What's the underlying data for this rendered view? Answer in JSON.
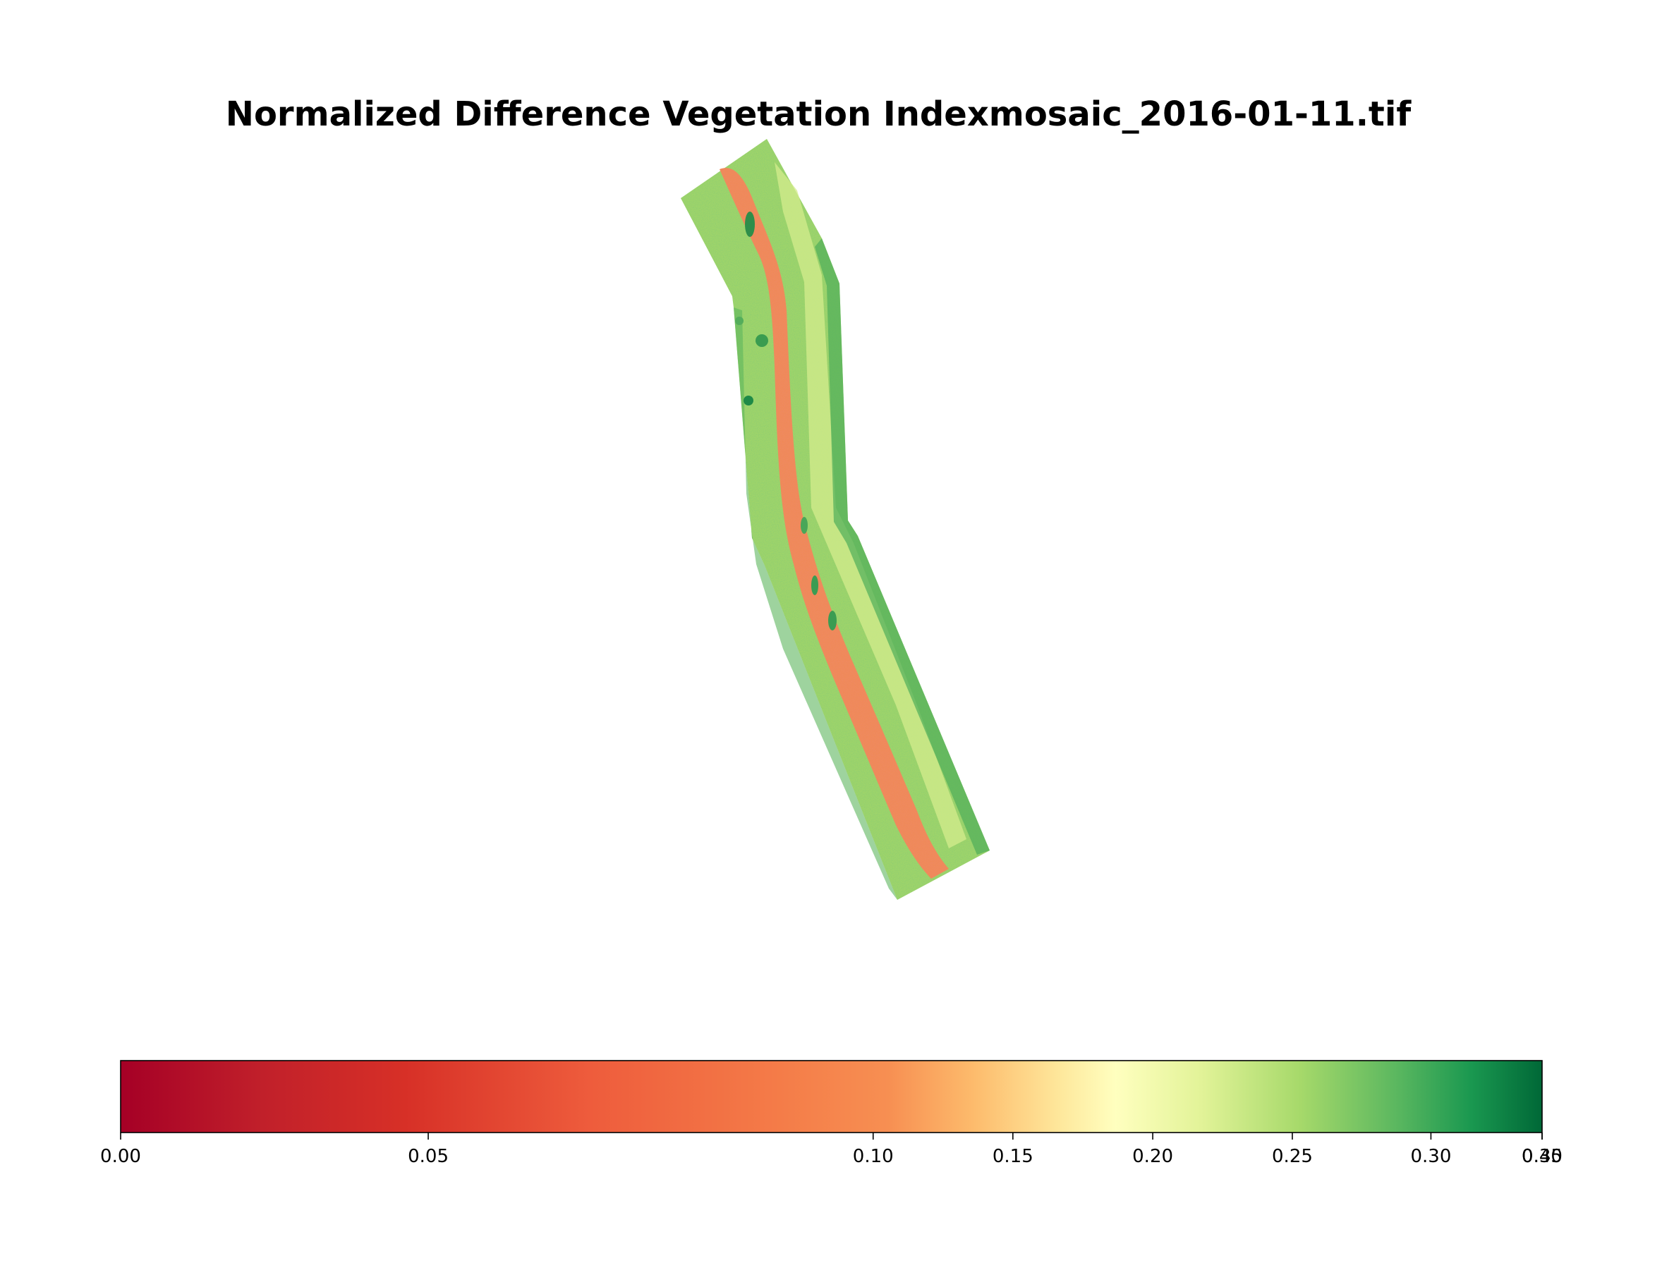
{
  "figure": {
    "title": "Normalized Difference Vegetation Indexmosaic_2016-01-11.tif"
  },
  "colormap": {
    "name": "RdYlGn",
    "stops": [
      "#a50026",
      "#d73027",
      "#f46d43",
      "#fdae61",
      "#ffffbf",
      "#d9ef8b",
      "#a6d96a",
      "#66bd63",
      "#1a9850",
      "#006837"
    ]
  },
  "colorbar": {
    "range": [
      0.0,
      0.35
    ],
    "ticks": [
      {
        "value": 0.0,
        "label": "0.00"
      },
      {
        "value": 0.05,
        "label": "0.05"
      },
      {
        "value": 0.1,
        "label": "0.10"
      },
      {
        "value": 0.15,
        "label": "0.15"
      },
      {
        "value": 0.2,
        "label": "0.20"
      },
      {
        "value": 0.25,
        "label": "0.25"
      },
      {
        "value": 0.3,
        "label": "0.30"
      },
      {
        "value": 0.35,
        "label": "0.35"
      },
      {
        "value": 0.4,
        "label": "0.40"
      }
    ]
  },
  "raster": {
    "description": "NDVI mosaic of a river corridor strip; river channel low NDVI (red/orange), banks high NDVI (green)",
    "channel_ndvi_approx": 0.08,
    "bank_ndvi_approx": 0.25
  }
}
